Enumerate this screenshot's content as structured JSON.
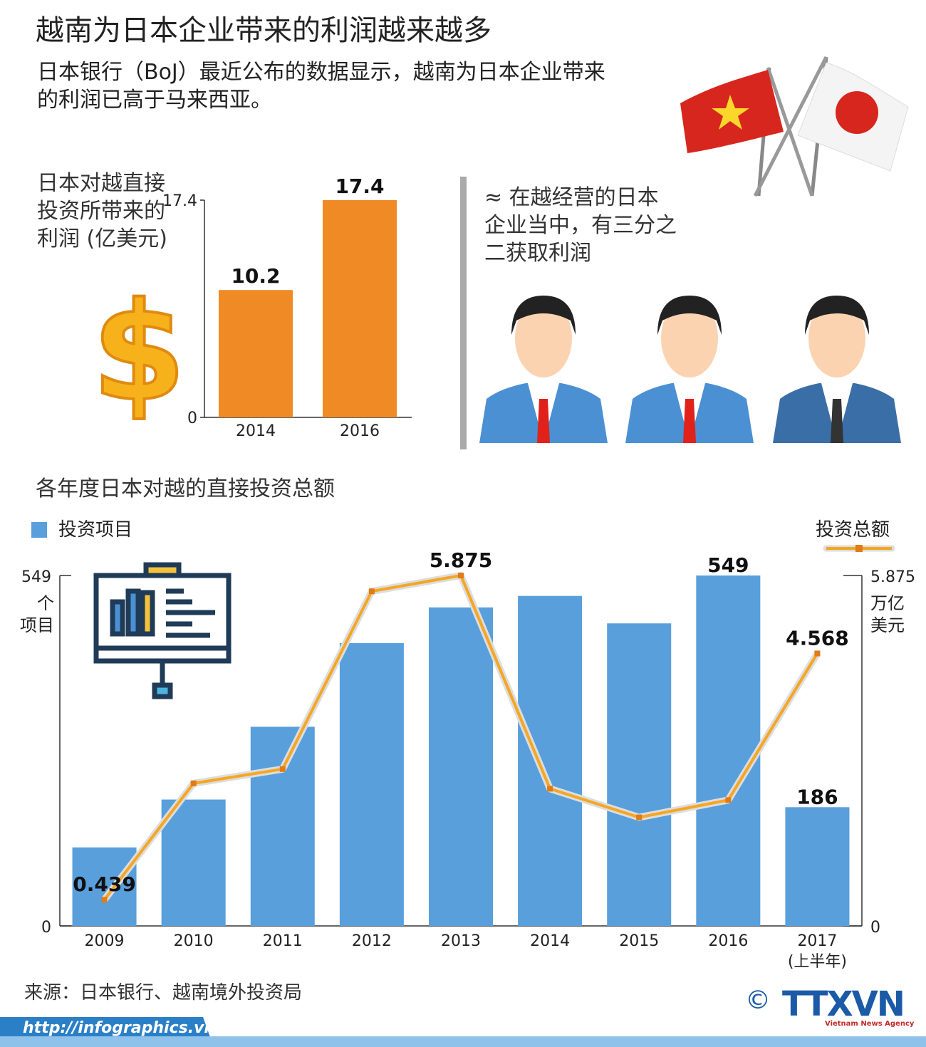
{
  "header": {
    "title": "越南为日本企业带来的利润越来越多",
    "subtitle": "日本银行（BoJ）最近公布的数据显示，越南为日本企业带来\n的利润已高于马来西亚。"
  },
  "note": "≈ 在越经营的日本\n企业当中，有三分之\n二获取利润",
  "chart_data": [
    {
      "type": "bar",
      "title": "日本对越直接\n投资所带来的\n利润 (亿美元)",
      "categories": [
        "2014",
        "2016"
      ],
      "values": [
        10.2,
        17.4
      ],
      "color": "#f08a24",
      "ylim": [
        0,
        17.4
      ],
      "yticks": [
        0,
        17.4
      ]
    },
    {
      "type": "bar_line",
      "title": "各年度日本对越的直接投资总额",
      "categories": [
        "2009",
        "2010",
        "2011",
        "2012",
        "2013",
        "2014",
        "2015",
        "2016",
        "2017\n(上半年)"
      ],
      "series": [
        {
          "name": "投资项目",
          "color": "#589fdc",
          "values": [
            123,
            198,
            312,
            443,
            499,
            517,
            474,
            549,
            186
          ],
          "value_labels": [
            null,
            null,
            null,
            null,
            null,
            null,
            null,
            "549",
            "186"
          ]
        },
        {
          "name": "投资总额",
          "color": "#f5a623",
          "axis": "y2",
          "values": [
            0.439,
            2.39,
            2.63,
            5.61,
            5.875,
            2.3,
            1.82,
            2.11,
            4.568
          ],
          "value_labels": [
            "0.439",
            null,
            null,
            null,
            "5.875",
            null,
            null,
            null,
            "4.568"
          ]
        }
      ],
      "ylim": [
        0,
        549
      ],
      "yticks": [
        0,
        549
      ],
      "ylabel": "个\n项目",
      "y2lim": [
        0,
        5.875
      ],
      "y2ticks": [
        0,
        5.875
      ],
      "y2label": "万亿\n美元",
      "legend": "top"
    }
  ],
  "footer": {
    "source": "来源：日本银行、越南境外投资局",
    "url": "http://infographics.vn",
    "copyright": "©",
    "logo": "TTXVN",
    "agency": "Vietnam News Agency"
  }
}
